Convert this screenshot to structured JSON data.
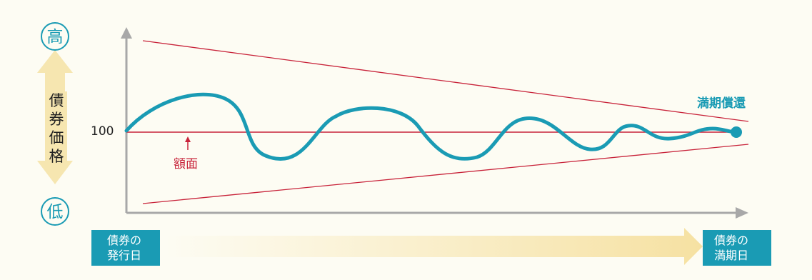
{
  "y_axis": {
    "high_label": "高",
    "low_label": "低",
    "title": "債券価格",
    "tick_100": "100"
  },
  "annotations": {
    "face_value": "額面",
    "maturity_redemption": "満期償還"
  },
  "x_axis": {
    "start_label": "債券の\n発行日",
    "end_label": "債券の\n満期日"
  },
  "colors": {
    "accent": "#1a9bb4",
    "face_line": "#c8233a",
    "axis": "#a8a8a8",
    "arrow_fill": "#f6e6b0"
  }
}
